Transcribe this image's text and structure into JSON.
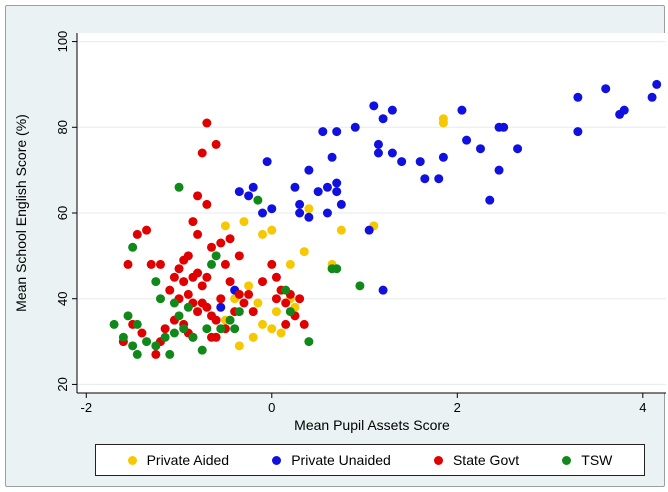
{
  "chart_data": {
    "type": "scatter",
    "title": "",
    "xlabel": "Mean Pupil Assets Score",
    "ylabel": "Mean School English Score (%)",
    "xlim": [
      -2.1,
      4.25
    ],
    "ylim": [
      18,
      102
    ],
    "xticks": [
      -2,
      0,
      2,
      4
    ],
    "yticks": [
      20,
      40,
      60,
      80,
      100
    ],
    "xtick_labels": [
      "-2",
      "0",
      "2",
      "4"
    ],
    "ytick_labels": [
      "20",
      "40",
      "60",
      "80",
      "100"
    ],
    "grid": "horizontal",
    "legend_position": "bottom",
    "series": [
      {
        "name": "Private Aided",
        "color": "#f5c800",
        "points": [
          [
            -0.5,
            57
          ],
          [
            -0.3,
            58
          ],
          [
            -0.1,
            55
          ],
          [
            0,
            56
          ],
          [
            0.2,
            48
          ],
          [
            0.35,
            51
          ],
          [
            0.4,
            61
          ],
          [
            0.65,
            48
          ],
          [
            0.75,
            56
          ],
          [
            1.1,
            57
          ],
          [
            1.85,
            82
          ],
          [
            1.85,
            81
          ],
          [
            -0.35,
            29
          ],
          [
            -0.2,
            31
          ],
          [
            -0.1,
            34
          ],
          [
            0,
            33
          ],
          [
            0.05,
            37
          ],
          [
            0.1,
            42
          ],
          [
            0.2,
            40
          ],
          [
            -0.5,
            35
          ],
          [
            -0.15,
            39
          ],
          [
            0.25,
            38
          ],
          [
            -0.25,
            43
          ],
          [
            -0.4,
            40
          ],
          [
            0.1,
            32
          ]
        ]
      },
      {
        "name": "Private Unaided",
        "color": "#1010e0",
        "points": [
          [
            -0.35,
            65
          ],
          [
            -0.25,
            64
          ],
          [
            -0.2,
            66
          ],
          [
            -0.05,
            72
          ],
          [
            -0.1,
            60
          ],
          [
            0,
            61
          ],
          [
            0.25,
            66
          ],
          [
            0.3,
            62
          ],
          [
            0.3,
            60
          ],
          [
            0.4,
            59
          ],
          [
            0.4,
            70
          ],
          [
            0.5,
            65
          ],
          [
            0.55,
            79
          ],
          [
            0.6,
            66
          ],
          [
            0.6,
            60
          ],
          [
            0.65,
            73
          ],
          [
            0.7,
            79
          ],
          [
            0.7,
            65
          ],
          [
            0.7,
            67
          ],
          [
            0.75,
            62
          ],
          [
            0.9,
            80
          ],
          [
            1.05,
            56
          ],
          [
            1.1,
            85
          ],
          [
            1.15,
            76
          ],
          [
            1.15,
            74
          ],
          [
            1.2,
            82
          ],
          [
            1.3,
            84
          ],
          [
            1.3,
            74
          ],
          [
            1.4,
            72
          ],
          [
            1.6,
            72
          ],
          [
            1.65,
            68
          ],
          [
            1.8,
            68
          ],
          [
            1.85,
            73
          ],
          [
            2.05,
            84
          ],
          [
            2.1,
            77
          ],
          [
            2.25,
            75
          ],
          [
            2.35,
            63
          ],
          [
            2.45,
            80
          ],
          [
            2.5,
            80
          ],
          [
            2.45,
            70
          ],
          [
            2.65,
            75
          ],
          [
            3.3,
            87
          ],
          [
            3.3,
            79
          ],
          [
            3.6,
            89
          ],
          [
            3.75,
            83
          ],
          [
            3.8,
            84
          ],
          [
            4.1,
            87
          ],
          [
            4.15,
            90
          ],
          [
            1.2,
            42
          ],
          [
            -0.55,
            38
          ],
          [
            -0.4,
            42
          ]
        ]
      },
      {
        "name": "State Govt",
        "color": "#e00000",
        "points": [
          [
            -0.7,
            81
          ],
          [
            -0.6,
            76
          ],
          [
            -0.75,
            74
          ],
          [
            -0.8,
            64
          ],
          [
            -0.7,
            62
          ],
          [
            -0.85,
            58
          ],
          [
            -0.8,
            55
          ],
          [
            -0.55,
            53
          ],
          [
            -0.45,
            54
          ],
          [
            -0.35,
            50
          ],
          [
            -0.65,
            52
          ],
          [
            -0.9,
            50
          ],
          [
            -1.0,
            47
          ],
          [
            -0.95,
            44
          ],
          [
            -0.85,
            45
          ],
          [
            -0.8,
            46
          ],
          [
            -0.75,
            43
          ],
          [
            -0.7,
            45
          ],
          [
            -1.1,
            42
          ],
          [
            -1.0,
            40
          ],
          [
            -0.9,
            41
          ],
          [
            -0.85,
            39
          ],
          [
            -0.8,
            37
          ],
          [
            -0.75,
            39
          ],
          [
            -0.7,
            38
          ],
          [
            -0.65,
            36
          ],
          [
            -0.6,
            35
          ],
          [
            -1.05,
            35
          ],
          [
            -0.95,
            34
          ],
          [
            -0.9,
            32
          ],
          [
            -0.85,
            31
          ],
          [
            -1.2,
            30
          ],
          [
            -1.25,
            27
          ],
          [
            -1.15,
            33
          ],
          [
            -1.3,
            48
          ],
          [
            -1.35,
            56
          ],
          [
            -1.45,
            55
          ],
          [
            -1.55,
            48
          ],
          [
            -1.2,
            48
          ],
          [
            -0.5,
            48
          ],
          [
            -0.45,
            44
          ],
          [
            -0.35,
            41
          ],
          [
            -0.3,
            39
          ],
          [
            -0.25,
            41
          ],
          [
            -0.2,
            37
          ],
          [
            -0.1,
            44
          ],
          [
            0,
            48
          ],
          [
            0.05,
            45
          ],
          [
            0.1,
            42
          ],
          [
            0.15,
            39
          ],
          [
            0.2,
            41
          ],
          [
            0.25,
            36
          ],
          [
            0.3,
            40
          ],
          [
            0.35,
            34
          ],
          [
            0.15,
            34
          ],
          [
            -0.6,
            31
          ],
          [
            -0.5,
            33
          ],
          [
            -0.55,
            40
          ],
          [
            -1.5,
            34
          ],
          [
            -1.4,
            32
          ],
          [
            -1.6,
            30
          ],
          [
            -0.4,
            37
          ],
          [
            -1.05,
            45
          ],
          [
            -0.65,
            31
          ],
          [
            -0.95,
            49
          ],
          [
            0.05,
            40
          ]
        ]
      },
      {
        "name": "TSW",
        "color": "#11881a",
        "points": [
          [
            -1.0,
            66
          ],
          [
            -0.15,
            63
          ],
          [
            -1.5,
            52
          ],
          [
            -0.65,
            48
          ],
          [
            -0.6,
            50
          ],
          [
            -1.25,
            44
          ],
          [
            -1.2,
            40
          ],
          [
            -1.05,
            39
          ],
          [
            -0.9,
            38
          ],
          [
            -1.55,
            36
          ],
          [
            -1.45,
            34
          ],
          [
            -1.7,
            34
          ],
          [
            -1.6,
            31
          ],
          [
            -1.5,
            29
          ],
          [
            -1.45,
            27
          ],
          [
            -1.35,
            30
          ],
          [
            -1.25,
            29
          ],
          [
            -1.15,
            31
          ],
          [
            -1.05,
            32
          ],
          [
            -0.95,
            33
          ],
          [
            -0.85,
            31
          ],
          [
            -0.75,
            28
          ],
          [
            -0.7,
            33
          ],
          [
            -0.55,
            33
          ],
          [
            -0.45,
            35
          ],
          [
            -0.4,
            33
          ],
          [
            -1.1,
            27
          ],
          [
            -1.0,
            36
          ],
          [
            -0.35,
            37
          ],
          [
            0.2,
            37
          ],
          [
            0.15,
            42
          ],
          [
            0.65,
            47
          ],
          [
            0.7,
            47
          ],
          [
            0.95,
            43
          ],
          [
            0.4,
            30
          ]
        ]
      }
    ]
  }
}
